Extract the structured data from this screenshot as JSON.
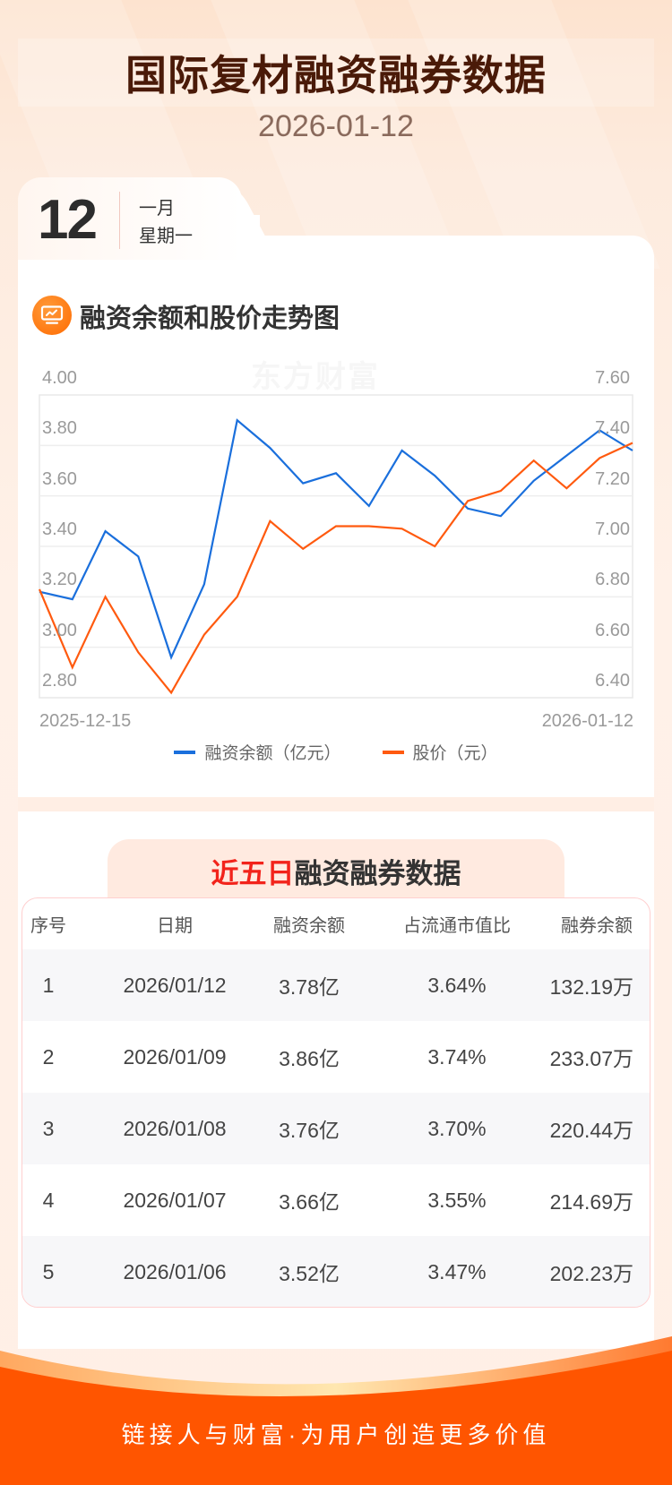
{
  "header": {
    "title": "国际复材融资融券数据",
    "date": "2026-01-12"
  },
  "date_tab": {
    "day": "12",
    "month": "一月",
    "weekday": "星期一"
  },
  "chart_section": {
    "title": "融资余额和股价走势图",
    "icon": "chart-monitor-icon",
    "watermark": "东方财富"
  },
  "chart_data": {
    "type": "line",
    "title": "融资余额和股价走势图",
    "x_start_label": "2025-12-15",
    "x_end_label": "2026-01-12",
    "x_count": 19,
    "y_left": {
      "label": "融资余额（亿元）",
      "ticks": [
        "4.00",
        "3.80",
        "3.60",
        "3.40",
        "3.20",
        "3.00",
        "2.80"
      ],
      "range": [
        2.8,
        4.0
      ]
    },
    "y_right": {
      "label": "股价（元）",
      "ticks": [
        "7.60",
        "7.40",
        "7.20",
        "7.00",
        "6.80",
        "6.60",
        "6.40"
      ],
      "range": [
        6.4,
        7.6
      ]
    },
    "grid": true,
    "legend_position": "bottom",
    "series": [
      {
        "name": "融资余额（亿元）",
        "axis": "left",
        "color": "#1a6fdc",
        "values": [
          3.22,
          3.19,
          3.46,
          3.36,
          2.96,
          3.25,
          3.9,
          3.79,
          3.65,
          3.69,
          3.56,
          3.78,
          3.68,
          3.55,
          3.52,
          3.66,
          3.76,
          3.86,
          3.78
        ]
      },
      {
        "name": "股价（元）",
        "axis": "right",
        "color": "#ff5a0f",
        "values": [
          6.83,
          6.52,
          6.8,
          6.58,
          6.42,
          6.65,
          6.8,
          7.1,
          6.99,
          7.08,
          7.08,
          7.07,
          7.0,
          7.18,
          7.22,
          7.34,
          7.23,
          7.35,
          7.41
        ]
      }
    ]
  },
  "legend": {
    "items": [
      {
        "label": "融资余额（亿元）",
        "color": "#1a6fdc"
      },
      {
        "label": "股价（元）",
        "color": "#ff5a0f"
      }
    ]
  },
  "table_section": {
    "title_highlight": "近五日",
    "title_rest": "融资融券数据",
    "columns": [
      "序号",
      "日期",
      "融资余额",
      "占流通市值比",
      "融券余额"
    ],
    "rows": [
      [
        "1",
        "2026/01/12",
        "3.78亿",
        "3.64%",
        "132.19万"
      ],
      [
        "2",
        "2026/01/09",
        "3.86亿",
        "3.74%",
        "233.07万"
      ],
      [
        "3",
        "2026/01/08",
        "3.76亿",
        "3.70%",
        "220.44万"
      ],
      [
        "4",
        "2026/01/07",
        "3.66亿",
        "3.55%",
        "214.69万"
      ],
      [
        "5",
        "2026/01/06",
        "3.52亿",
        "3.47%",
        "202.23万"
      ]
    ]
  },
  "footer": {
    "slogan": "链接人与财富·为用户创造更多价值"
  },
  "colors": {
    "accent_orange": "#ff5500",
    "highlight_red": "#f2231b",
    "title_brown": "#4a1a08"
  }
}
